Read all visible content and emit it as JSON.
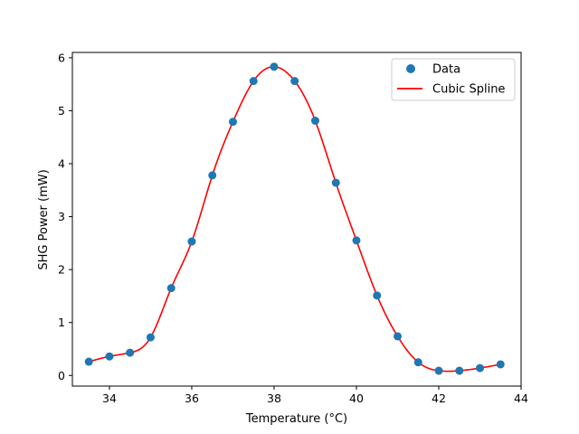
{
  "chart_data": {
    "type": "scatter",
    "title": "",
    "xlabel": "Temperature (°C)",
    "ylabel": "SHG Power (mW)",
    "xlim": [
      33.1,
      44.0
    ],
    "ylim": [
      -0.2,
      6.1
    ],
    "xticks": [
      34,
      36,
      38,
      40,
      42,
      44
    ],
    "yticks": [
      0,
      1,
      2,
      3,
      4,
      5,
      6
    ],
    "grid": false,
    "legend_position": "top-right",
    "series": [
      {
        "name": "Data",
        "kind": "scatter",
        "color": "#1f77b4",
        "x": [
          33.5,
          34.0,
          34.5,
          35.0,
          35.5,
          36.0,
          36.5,
          37.0,
          37.5,
          38.0,
          38.5,
          39.0,
          39.5,
          40.0,
          40.5,
          41.0,
          41.5,
          42.0,
          42.5,
          43.0,
          43.5
        ],
        "y": [
          0.26,
          0.36,
          0.43,
          0.72,
          1.65,
          2.53,
          3.78,
          4.79,
          5.56,
          5.83,
          5.56,
          4.81,
          3.64,
          2.55,
          1.51,
          0.74,
          0.25,
          0.09,
          0.09,
          0.14,
          0.21
        ]
      },
      {
        "name": "Cubic Spline",
        "kind": "line",
        "color": "#ff0000",
        "interpolation": "cubic-spline"
      }
    ]
  }
}
